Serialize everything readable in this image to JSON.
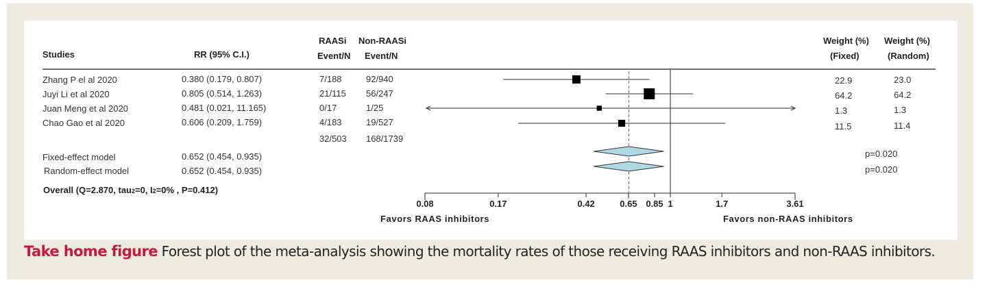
{
  "chart_data": {
    "type": "forest",
    "title": "",
    "columns": {
      "studies": "Studies",
      "rr": "RR (95% C.I.)",
      "raasi_top": "RAASi",
      "raasi_bottom": "Event/N",
      "nonraasi_top": "Non-RAASi",
      "nonraasi_bottom": "Event/N",
      "wfixed_top": "Weight (%)",
      "wfixed_bottom": "(Fixed)",
      "wrandom_top": "Weight (%)",
      "wrandom_bottom": "(Random)"
    },
    "studies": [
      {
        "name": "Zhang P el al  2020",
        "rr_text": "0.380 (0.179,  0.807)",
        "rr": 0.38,
        "lo": 0.179,
        "hi": 0.807,
        "raasi": "7/188",
        "nonraasi": "92/940",
        "w_fixed": "22.9",
        "w_random": "23.0"
      },
      {
        "name": "Juyi Li et al 2020",
        "rr_text": "0.805 (0.514,  1.263)",
        "rr": 0.805,
        "lo": 0.514,
        "hi": 1.263,
        "raasi": "21/115",
        "nonraasi": "56/247",
        "w_fixed": "64.2",
        "w_random": "64.2"
      },
      {
        "name": "Juan Meng et al 2020",
        "rr_text": "0.481 (0.021, 11.165)",
        "rr": 0.481,
        "lo": 0.021,
        "hi": 11.165,
        "raasi": "0/17",
        "nonraasi": "1/25",
        "w_fixed": "1.3",
        "w_random": "1.3"
      },
      {
        "name": "Chao Gao et al 2020",
        "rr_text": "0.606 (0.209,  1.759)",
        "rr": 0.606,
        "lo": 0.209,
        "hi": 1.759,
        "raasi": "4/183",
        "nonraasi": "19/527",
        "w_fixed": "11.5",
        "w_random": "11.4"
      }
    ],
    "totals": {
      "raasi": "32/503",
      "nonraasi": "168/1739"
    },
    "models": [
      {
        "name": "Fixed-effect model",
        "rr_text": "0.652 (0.454,  0.935)",
        "rr": 0.652,
        "lo": 0.454,
        "hi": 0.935,
        "p": "p=0.020"
      },
      {
        "name": "Random-effect model",
        "rr_text": "0.652 (0.454,  0.935)",
        "rr": 0.652,
        "lo": 0.454,
        "hi": 0.935,
        "p": "p=0.020"
      }
    ],
    "overall_prefix": "Overall (Q=2.870, tau",
    "overall_sub1": "2",
    "overall_mid": "=0, I",
    "overall_sub2": "2",
    "overall_suffix": "=0% , P=0.412)",
    "xscale": "log",
    "xlim": [
      0.08,
      3.61
    ],
    "xticks": [
      0.08,
      0.17,
      0.42,
      0.65,
      0.85,
      1,
      1.7,
      3.61
    ],
    "xtick_labels": [
      "0.08",
      "0.17",
      "0.42",
      "0.65",
      "0.85",
      "1",
      "1.7",
      "3.61"
    ],
    "null_line": 1,
    "pooled_line": 0.652,
    "left_label": "Favors RAAS inhibitors",
    "right_label": "Favors non-RAAS inhibitors",
    "colors": {
      "diamond_fill": "#add8e6",
      "pooled_line": "#e23030",
      "marker": "#000000"
    }
  },
  "caption": {
    "lead": "Take home figure",
    "text": " Forest plot of the meta-analysis showing the mortality rates of those receiving RAAS inhibitors and non-RAAS inhibitors."
  }
}
